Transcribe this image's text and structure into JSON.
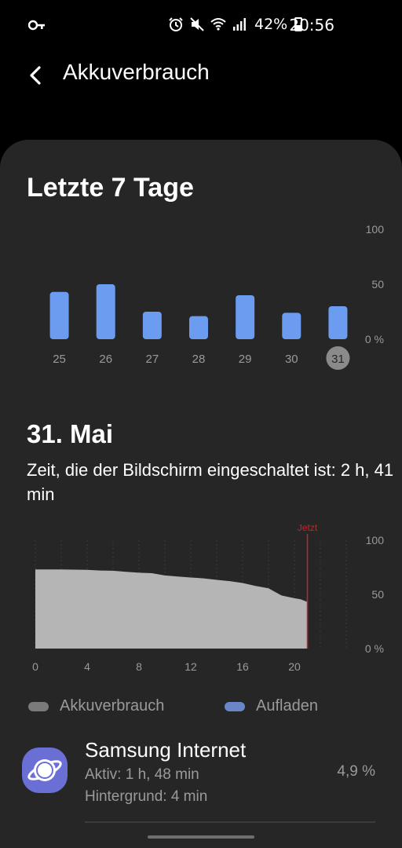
{
  "status_bar": {
    "battery_pct": "42%",
    "time": "20:56",
    "icons": [
      "key-icon",
      "alarm-icon",
      "mute-icon",
      "wifi-icon",
      "signal-icon",
      "battery-icon"
    ]
  },
  "header": {
    "back_icon": "chevron-left-icon",
    "title": "Akkuverbrauch"
  },
  "weekly": {
    "heading": "Letzte 7 Tage",
    "selected_day": "31"
  },
  "day": {
    "heading": "31. Mai",
    "screen_time": "Zeit, die der Bildschirm eingeschaltet ist: 2 h, 41 min"
  },
  "legend": {
    "usage_label": "Akkuverbrauch",
    "charging_label": "Aufladen",
    "usage_color": "#7a7a7a",
    "charging_color": "#6b86c8"
  },
  "app_list": [
    {
      "name": "Samsung Internet",
      "active": "Aktiv: 1 h, 48 min",
      "background": "Hintergrund: 4 min",
      "percent": "4,9 %",
      "icon": "samsung-internet-icon"
    }
  ],
  "colors": {
    "bar": "#6b9cf0",
    "now_marker": "#c0262d",
    "card_bg": "#262626"
  },
  "chart_data": [
    {
      "type": "bar",
      "categories": [
        "25",
        "26",
        "27",
        "28",
        "29",
        "30",
        "31"
      ],
      "values": [
        43,
        50,
        25,
        21,
        40,
        24,
        30
      ],
      "ylim": [
        0,
        100
      ],
      "ytick_labels": [
        "100",
        "50",
        "0 %"
      ]
    },
    {
      "type": "area",
      "x": [
        0,
        1,
        2,
        3,
        4,
        5,
        6,
        7,
        8,
        9,
        10,
        11,
        12,
        13,
        14,
        15,
        16,
        17,
        18,
        19,
        20,
        20.5,
        21
      ],
      "y": [
        73,
        73,
        73,
        72.8,
        72.6,
        72,
        71.8,
        70.8,
        70,
        69.6,
        67.5,
        66.5,
        65.6,
        64.8,
        63.4,
        62.2,
        60.5,
        57.8,
        55.6,
        49,
        46.5,
        45.4,
        43
      ],
      "ylim": [
        0,
        100
      ],
      "xlim": [
        0,
        24
      ],
      "xtick_labels": [
        "0",
        "4",
        "8",
        "12",
        "16",
        "20"
      ],
      "ytick_labels": [
        "100",
        "50",
        "0 %"
      ],
      "now_label": "Jetzt",
      "now_x": 21
    }
  ]
}
